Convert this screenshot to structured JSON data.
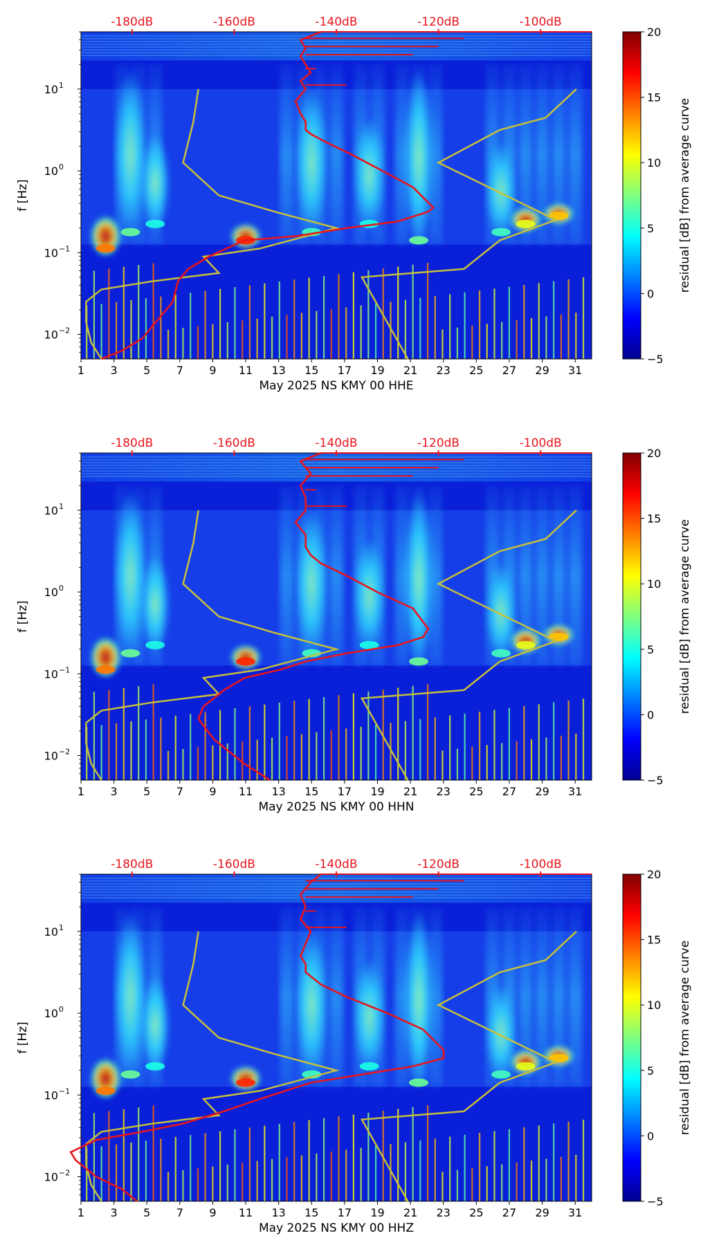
{
  "chart_data": [
    {
      "type": "heatmap",
      "panel": "top",
      "xlabel": "May 2025 NS KMY 00 HHE",
      "ylabel": "f [Hz]",
      "x_ticks": [
        "1",
        "3",
        "5",
        "7",
        "9",
        "11",
        "13",
        "15",
        "17",
        "19",
        "21",
        "23",
        "25",
        "27",
        "29",
        "31"
      ],
      "x_range": [
        1,
        32
      ],
      "y_range_log10": [
        -2.3,
        1.7
      ],
      "y_ticks": [
        {
          "base": "10",
          "exp": "1",
          "value": 10
        },
        {
          "base": "10",
          "exp": "0",
          "value": 1
        },
        {
          "base": "10",
          "exp": "−1",
          "value": 0.1
        },
        {
          "base": "10",
          "exp": "−2",
          "value": 0.01
        }
      ],
      "top_axis_labels": [
        "-180dB",
        "-160dB",
        "-140dB",
        "-120dB",
        "-100dB"
      ],
      "colorbar": {
        "label": "residual [dB] from average curve",
        "range": [
          -5,
          20
        ],
        "ticks": [
          "20",
          "15",
          "10",
          "5",
          "0",
          "−5"
        ]
      },
      "series": [
        {
          "name": "average PSD curve (red)",
          "unit": "dB",
          "points": [
            [
              -186,
              -2.3
            ],
            [
              -182,
              -2.2
            ],
            [
              -178,
              -2.05
            ],
            [
              -172,
              -1.6
            ],
            [
              -171,
              -1.35
            ],
            [
              -169,
              -1.2
            ],
            [
              -165,
              -1.05
            ],
            [
              -158,
              -0.85
            ],
            [
              -148,
              -0.8
            ],
            [
              -138,
              -0.7
            ],
            [
              -128,
              -0.62
            ],
            [
              -122,
              -0.5
            ],
            [
              -121,
              -0.45
            ],
            [
              -125,
              -0.2
            ],
            [
              -131,
              0.0
            ],
            [
              -137,
              0.2
            ],
            [
              -142,
              0.35
            ],
            [
              -145,
              0.45
            ],
            [
              -146,
              0.5
            ],
            [
              -146,
              0.6
            ],
            [
              -147,
              0.7
            ],
            [
              -148,
              0.85
            ],
            [
              -146,
              1.0
            ],
            [
              -147,
              1.1
            ],
            [
              -145,
              1.2
            ],
            [
              -146,
              1.3
            ],
            [
              -147,
              1.4
            ],
            [
              -146,
              1.5
            ],
            [
              -147,
              1.6
            ],
            [
              -143,
              1.7
            ]
          ]
        },
        {
          "name": "noise model envelope (yellow)",
          "unit": "dB",
          "points_low": [
            [
              -186,
              -2.3
            ],
            [
              -188,
              -2.1
            ],
            [
              -189,
              -1.85
            ],
            [
              -189,
              -1.6
            ],
            [
              -186,
              -1.45
            ],
            [
              -176,
              -1.35
            ],
            [
              -163,
              -1.25
            ],
            [
              -166,
              -1.05
            ],
            [
              -155,
              -0.95
            ],
            [
              -140,
              -0.7
            ],
            [
              -152,
              -0.5
            ],
            [
              -163,
              -0.3
            ],
            [
              -170,
              0.1
            ],
            [
              -168,
              0.6
            ],
            [
              -167,
              1.0
            ]
          ],
          "points_high": [
            [
              -126,
              -2.3
            ],
            [
              -135,
              -1.3
            ],
            [
              -115,
              -1.2
            ],
            [
              -108,
              -0.85
            ],
            [
              -97,
              -0.6
            ],
            [
              -120,
              0.1
            ],
            [
              -108,
              0.5
            ],
            [
              -99,
              0.65
            ],
            [
              -93,
              1.0
            ]
          ]
        }
      ]
    },
    {
      "type": "heatmap",
      "panel": "middle",
      "xlabel": "May 2025 NS KMY 00 HHN",
      "ylabel": "f [Hz]",
      "x_ticks": [
        "1",
        "3",
        "5",
        "7",
        "9",
        "11",
        "13",
        "15",
        "17",
        "19",
        "21",
        "23",
        "25",
        "27",
        "29",
        "31"
      ],
      "x_range": [
        1,
        32
      ],
      "y_range_log10": [
        -2.3,
        1.7
      ],
      "y_ticks": [
        {
          "base": "10",
          "exp": "1",
          "value": 10
        },
        {
          "base": "10",
          "exp": "0",
          "value": 1
        },
        {
          "base": "10",
          "exp": "−1",
          "value": 0.1
        },
        {
          "base": "10",
          "exp": "−2",
          "value": 0.01
        }
      ],
      "top_axis_labels": [
        "-180dB",
        "-160dB",
        "-140dB",
        "-120dB",
        "-100dB"
      ],
      "colorbar": {
        "label": "residual [dB] from average curve",
        "range": [
          -5,
          20
        ],
        "ticks": [
          "20",
          "15",
          "10",
          "5",
          "0",
          "−5"
        ]
      },
      "series": [
        {
          "name": "average PSD curve (red)",
          "unit": "dB",
          "points": [
            [
              -153,
              -2.3
            ],
            [
              -158,
              -2.1
            ],
            [
              -164,
              -1.8
            ],
            [
              -167,
              -1.55
            ],
            [
              -166,
              -1.4
            ],
            [
              -162,
              -1.2
            ],
            [
              -158,
              -1.05
            ],
            [
              -151,
              -0.95
            ],
            [
              -146,
              -0.85
            ],
            [
              -138,
              -0.75
            ],
            [
              -128,
              -0.65
            ],
            [
              -123,
              -0.55
            ],
            [
              -122,
              -0.45
            ],
            [
              -125,
              -0.2
            ],
            [
              -132,
              0.0
            ],
            [
              -138,
              0.2
            ],
            [
              -143,
              0.35
            ],
            [
              -145,
              0.45
            ],
            [
              -146,
              0.55
            ],
            [
              -146,
              0.7
            ],
            [
              -148,
              0.85
            ],
            [
              -146,
              1.0
            ],
            [
              -146,
              1.15
            ],
            [
              -147,
              1.3
            ],
            [
              -145,
              1.45
            ],
            [
              -147,
              1.6
            ],
            [
              -143,
              1.7
            ]
          ]
        },
        {
          "name": "noise model envelope (yellow)",
          "unit": "dB",
          "points_low": [
            [
              -186,
              -2.3
            ],
            [
              -188,
              -2.1
            ],
            [
              -189,
              -1.85
            ],
            [
              -189,
              -1.6
            ],
            [
              -186,
              -1.45
            ],
            [
              -176,
              -1.35
            ],
            [
              -163,
              -1.25
            ],
            [
              -166,
              -1.05
            ],
            [
              -155,
              -0.95
            ],
            [
              -140,
              -0.7
            ],
            [
              -152,
              -0.5
            ],
            [
              -163,
              -0.3
            ],
            [
              -170,
              0.1
            ],
            [
              -168,
              0.6
            ],
            [
              -167,
              1.0
            ]
          ],
          "points_high": [
            [
              -126,
              -2.3
            ],
            [
              -135,
              -1.3
            ],
            [
              -115,
              -1.2
            ],
            [
              -108,
              -0.85
            ],
            [
              -97,
              -0.6
            ],
            [
              -120,
              0.1
            ],
            [
              -108,
              0.5
            ],
            [
              -99,
              0.65
            ],
            [
              -93,
              1.0
            ]
          ]
        }
      ]
    },
    {
      "type": "heatmap",
      "panel": "bottom",
      "xlabel": "May 2025 NS KMY 00 HHZ",
      "ylabel": "f [Hz]",
      "x_ticks": [
        "1",
        "3",
        "5",
        "7",
        "9",
        "11",
        "13",
        "15",
        "17",
        "19",
        "21",
        "23",
        "25",
        "27",
        "29",
        "31"
      ],
      "x_range": [
        1,
        32
      ],
      "y_range_log10": [
        -2.3,
        1.7
      ],
      "y_ticks": [
        {
          "base": "10",
          "exp": "1",
          "value": 10
        },
        {
          "base": "10",
          "exp": "0",
          "value": 1
        },
        {
          "base": "10",
          "exp": "−1",
          "value": 0.1
        },
        {
          "base": "10",
          "exp": "−2",
          "value": 0.01
        }
      ],
      "top_axis_labels": [
        "-180dB",
        "-160dB",
        "-140dB",
        "-120dB",
        "-100dB"
      ],
      "colorbar": {
        "label": "residual [dB] from average curve",
        "range": [
          -5,
          20
        ],
        "ticks": [
          "20",
          "15",
          "10",
          "5",
          "0",
          "−5"
        ]
      },
      "series": [
        {
          "name": "average PSD curve (red)",
          "unit": "dB",
          "points": [
            [
              -179,
              -2.3
            ],
            [
              -182,
              -2.15
            ],
            [
              -187,
              -2.0
            ],
            [
              -191,
              -1.8
            ],
            [
              -192,
              -1.7
            ],
            [
              -187,
              -1.55
            ],
            [
              -178,
              -1.45
            ],
            [
              -170,
              -1.35
            ],
            [
              -162,
              -1.2
            ],
            [
              -155,
              -1.05
            ],
            [
              -145,
              -0.85
            ],
            [
              -135,
              -0.75
            ],
            [
              -125,
              -0.65
            ],
            [
              -119,
              -0.55
            ],
            [
              -119,
              -0.45
            ],
            [
              -123,
              -0.2
            ],
            [
              -130,
              0.0
            ],
            [
              -138,
              0.2
            ],
            [
              -143,
              0.35
            ],
            [
              -146,
              0.5
            ],
            [
              -146,
              0.6
            ],
            [
              -147,
              0.7
            ],
            [
              -146,
              0.85
            ],
            [
              -145,
              1.0
            ],
            [
              -147,
              1.15
            ],
            [
              -146,
              1.3
            ],
            [
              -147,
              1.45
            ],
            [
              -145,
              1.6
            ],
            [
              -143,
              1.7
            ]
          ]
        },
        {
          "name": "noise model envelope (yellow)",
          "unit": "dB",
          "points_low": [
            [
              -186,
              -2.3
            ],
            [
              -188,
              -2.1
            ],
            [
              -189,
              -1.85
            ],
            [
              -189,
              -1.6
            ],
            [
              -186,
              -1.45
            ],
            [
              -176,
              -1.35
            ],
            [
              -163,
              -1.25
            ],
            [
              -166,
              -1.05
            ],
            [
              -155,
              -0.95
            ],
            [
              -140,
              -0.7
            ],
            [
              -152,
              -0.5
            ],
            [
              -163,
              -0.3
            ],
            [
              -170,
              0.1
            ],
            [
              -168,
              0.6
            ],
            [
              -167,
              1.0
            ]
          ],
          "points_high": [
            [
              -126,
              -2.3
            ],
            [
              -135,
              -1.3
            ],
            [
              -115,
              -1.2
            ],
            [
              -108,
              -0.85
            ],
            [
              -97,
              -0.6
            ],
            [
              -120,
              0.1
            ],
            [
              -108,
              0.5
            ],
            [
              -99,
              0.65
            ],
            [
              -93,
              1.0
            ]
          ]
        }
      ]
    }
  ],
  "db_axis": {
    "min": -190,
    "max": -90
  },
  "spectral_features": [
    {
      "day": 4,
      "f_lo": -0.8,
      "f_hi": 1.2,
      "level": 7
    },
    {
      "day": 5.5,
      "f_lo": -0.7,
      "f_hi": 0.4,
      "level": 5
    },
    {
      "day": 2.5,
      "f_lo": -1.0,
      "f_hi": -0.6,
      "level": 14
    },
    {
      "day": 11,
      "f_lo": -0.9,
      "f_hi": -0.7,
      "level": 16
    },
    {
      "day": 15,
      "f_lo": -0.8,
      "f_hi": 1.0,
      "level": 6
    },
    {
      "day": 18.5,
      "f_lo": -0.7,
      "f_hi": 0.6,
      "level": 5
    },
    {
      "day": 21.5,
      "f_lo": -0.9,
      "f_hi": 1.2,
      "level": 7
    },
    {
      "day": 26.5,
      "f_lo": -0.8,
      "f_hi": 0.3,
      "level": 6
    },
    {
      "day": 28,
      "f_lo": -0.7,
      "f_hi": -0.5,
      "level": 10
    },
    {
      "day": 30,
      "f_lo": -0.6,
      "f_hi": -0.45,
      "level": 12
    }
  ]
}
